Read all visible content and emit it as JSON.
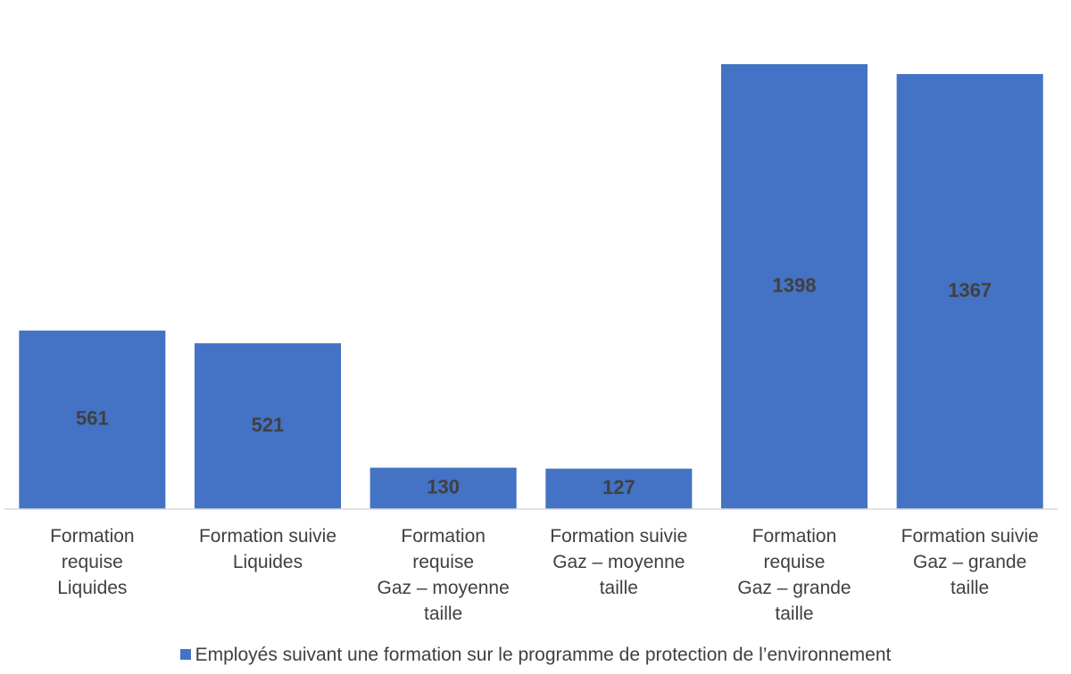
{
  "chart_data": {
    "type": "bar",
    "categories": [
      "Formation\nrequise\nLiquides",
      "Formation suivie\nLiquides",
      "Formation\nrequise\nGaz – moyenne\ntaille",
      "Formation suivie\nGaz – moyenne\ntaille",
      "Formation\nrequise\nGaz – grande\ntaille",
      "Formation suivie\nGaz – grande\ntaille"
    ],
    "series": [
      {
        "name": "Employés suivant une formation sur le programme de protection de l’environnement",
        "color": "#4472c4",
        "values": [
          561,
          521,
          130,
          127,
          1398,
          1367
        ]
      }
    ],
    "legend": "bottom"
  }
}
